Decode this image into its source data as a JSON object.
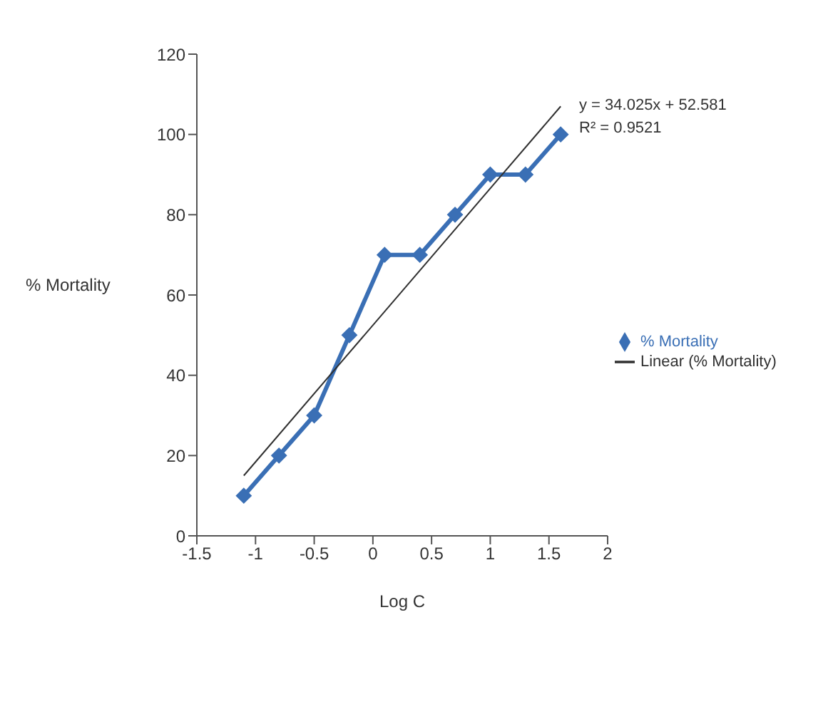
{
  "chart_data": {
    "type": "line",
    "xlabel": "Log C",
    "ylabel": "% Mortality",
    "x": [
      -1.1,
      -0.8,
      -0.5,
      -0.2,
      0.1,
      0.4,
      0.7,
      1.0,
      1.3,
      1.6
    ],
    "series": [
      {
        "name": "% Mortality",
        "color": "#3a6fb5",
        "values": [
          10,
          20,
          30,
          50,
          70,
          70,
          80,
          90,
          90,
          100
        ],
        "marker": "diamond"
      },
      {
        "name": "Linear (% Mortality)",
        "color": "#303030",
        "type": "line",
        "x": [
          -1.1,
          1.6
        ],
        "values": [
          15,
          107
        ],
        "marker": "none"
      }
    ],
    "xlim": [
      -1.5,
      2
    ],
    "xticks": [
      -1.5,
      -1,
      -0.5,
      0,
      0.5,
      1,
      1.5,
      2
    ],
    "ylim": [
      0,
      120
    ],
    "yticks": [
      0,
      20,
      40,
      60,
      80,
      100,
      120
    ],
    "annotations": [
      "y = 34.025x + 52.581",
      "R² = 0.9521"
    ],
    "legend": "right",
    "grid": false
  }
}
